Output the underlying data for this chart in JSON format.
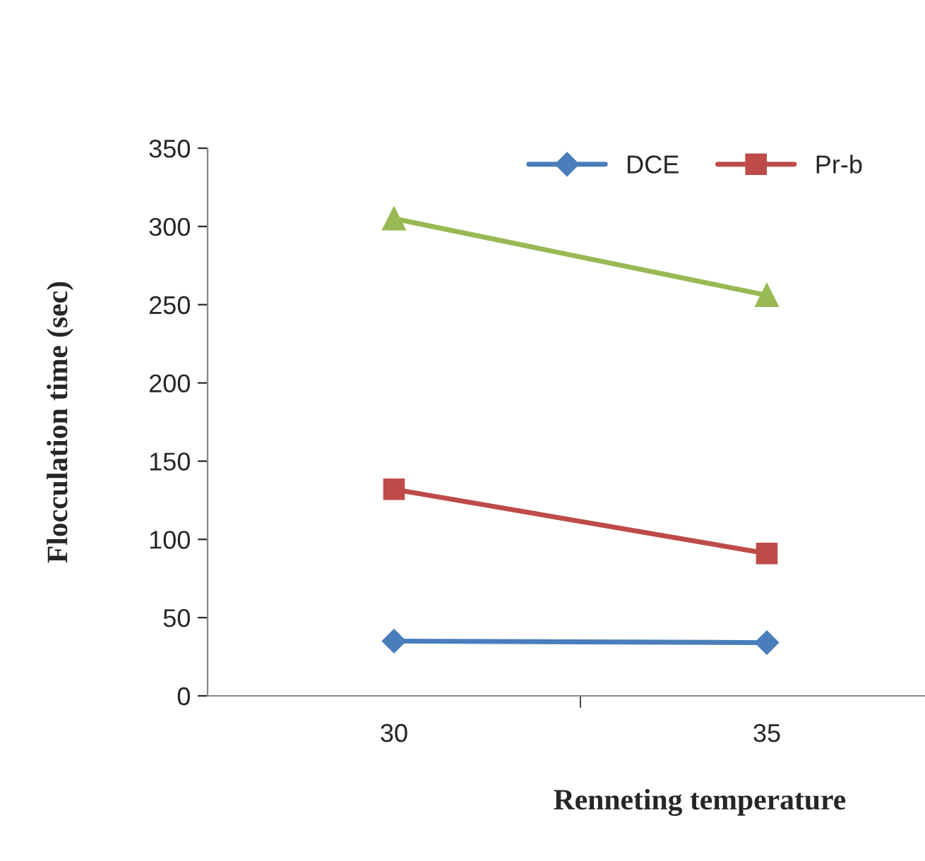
{
  "chart_data": {
    "type": "line",
    "xlabel": "Renneting temperature",
    "ylabel": "Flocculation time (sec)",
    "categories": [
      "30",
      "35"
    ],
    "series": [
      {
        "name": "DCE",
        "color": "#4a7ebb",
        "marker": "diamond",
        "values": [
          35,
          34
        ]
      },
      {
        "name": "Pr-b",
        "color": "#be4b48",
        "marker": "square",
        "values": [
          132,
          91
        ]
      },
      {
        "color": "#98b954",
        "marker": "triangle",
        "values": [
          305,
          256
        ]
      }
    ],
    "ylim": [
      0,
      350
    ],
    "yticks": [
      0,
      50,
      100,
      150,
      200,
      250,
      300,
      350
    ],
    "grid": false,
    "legend": "top"
  }
}
